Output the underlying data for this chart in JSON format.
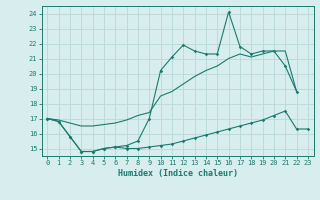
{
  "x": [
    0,
    1,
    2,
    3,
    4,
    5,
    6,
    7,
    8,
    9,
    10,
    11,
    12,
    13,
    14,
    15,
    16,
    17,
    18,
    19,
    20,
    21,
    22,
    23
  ],
  "line1_y": [
    17.0,
    16.8,
    15.8,
    14.8,
    14.8,
    15.0,
    15.1,
    15.0,
    15.0,
    15.1,
    15.2,
    15.3,
    15.5,
    15.7,
    15.9,
    16.1,
    16.3,
    16.5,
    16.7,
    16.9,
    17.2,
    17.5,
    16.3,
    16.3
  ],
  "line2_y": [
    17.0,
    16.8,
    15.8,
    14.8,
    14.8,
    15.0,
    15.1,
    15.2,
    15.5,
    17.0,
    20.2,
    21.1,
    21.9,
    21.5,
    21.3,
    21.3,
    24.1,
    21.8,
    21.3,
    21.5,
    21.5,
    20.5,
    18.8,
    null
  ],
  "line3_y": [
    17.0,
    16.9,
    16.7,
    16.5,
    16.5,
    16.6,
    16.7,
    16.9,
    17.2,
    17.4,
    18.5,
    18.8,
    19.3,
    19.8,
    20.2,
    20.5,
    21.0,
    21.3,
    21.1,
    21.3,
    21.5,
    21.5,
    18.8,
    null
  ],
  "color": "#1a7a6e",
  "bg_color": "#d8eeee",
  "grid_color": "#b8d8d8",
  "xlabel": "Humidex (Indice chaleur)",
  "ylabel_ticks": [
    15,
    16,
    17,
    18,
    19,
    20,
    21,
    22,
    23,
    24
  ],
  "ylim": [
    14.5,
    24.5
  ],
  "xlim": [
    -0.5,
    23.5
  ]
}
